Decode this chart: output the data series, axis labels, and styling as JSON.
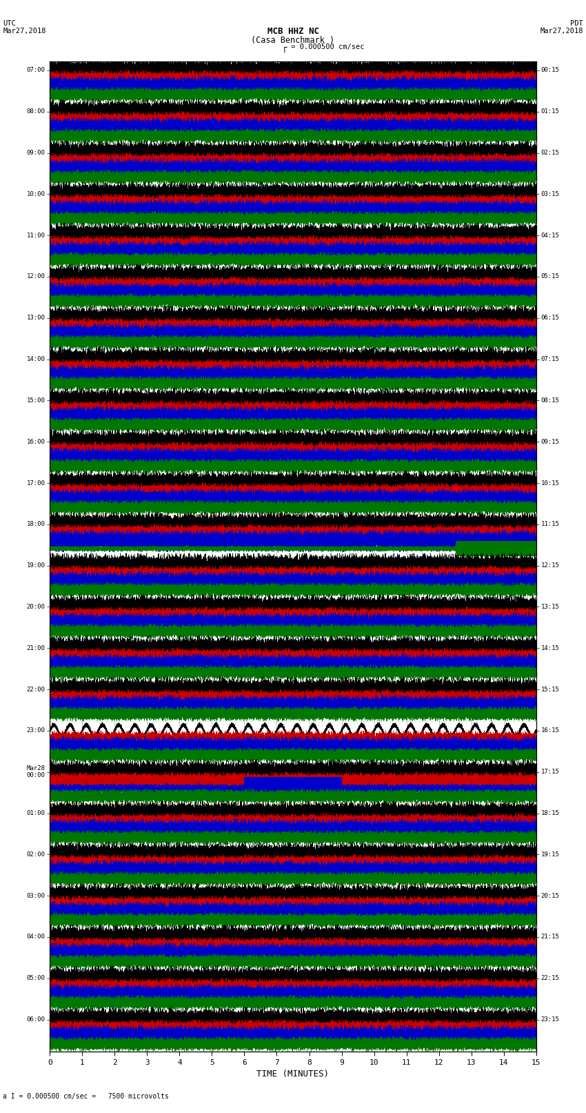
{
  "title_line1": "MCB HHZ NC",
  "title_line2": "(Casa Benchmark )",
  "scale_label": "I = 0.000500 cm/sec",
  "bottom_label": "a I = 0.000500 cm/sec =   7500 microvolts",
  "utc_label": "UTC\nMar27,2018",
  "pdt_label": "PDT\nMar27,2018",
  "xlabel": "TIME (MINUTES)",
  "left_times": [
    "07:00",
    "08:00",
    "09:00",
    "10:00",
    "11:00",
    "12:00",
    "13:00",
    "14:00",
    "15:00",
    "16:00",
    "17:00",
    "18:00",
    "19:00",
    "20:00",
    "21:00",
    "22:00",
    "23:00",
    "Mar28\n00:00",
    "01:00",
    "02:00",
    "03:00",
    "04:00",
    "05:00",
    "06:00"
  ],
  "right_times": [
    "00:15",
    "01:15",
    "02:15",
    "03:15",
    "04:15",
    "05:15",
    "06:15",
    "07:15",
    "08:15",
    "09:15",
    "10:15",
    "11:15",
    "12:15",
    "13:15",
    "14:15",
    "15:15",
    "16:15",
    "17:15",
    "18:15",
    "19:15",
    "20:15",
    "21:15",
    "22:15",
    "23:15"
  ],
  "n_rows": 24,
  "traces_per_row": 4,
  "n_minutes": 15,
  "sample_rate": 50,
  "bg_color": "#ffffff",
  "trace_colors": [
    "#000000",
    "#cc0000",
    "#0000cc",
    "#007700"
  ],
  "grid_color": "#888888",
  "fig_width": 8.5,
  "fig_height": 16.13
}
